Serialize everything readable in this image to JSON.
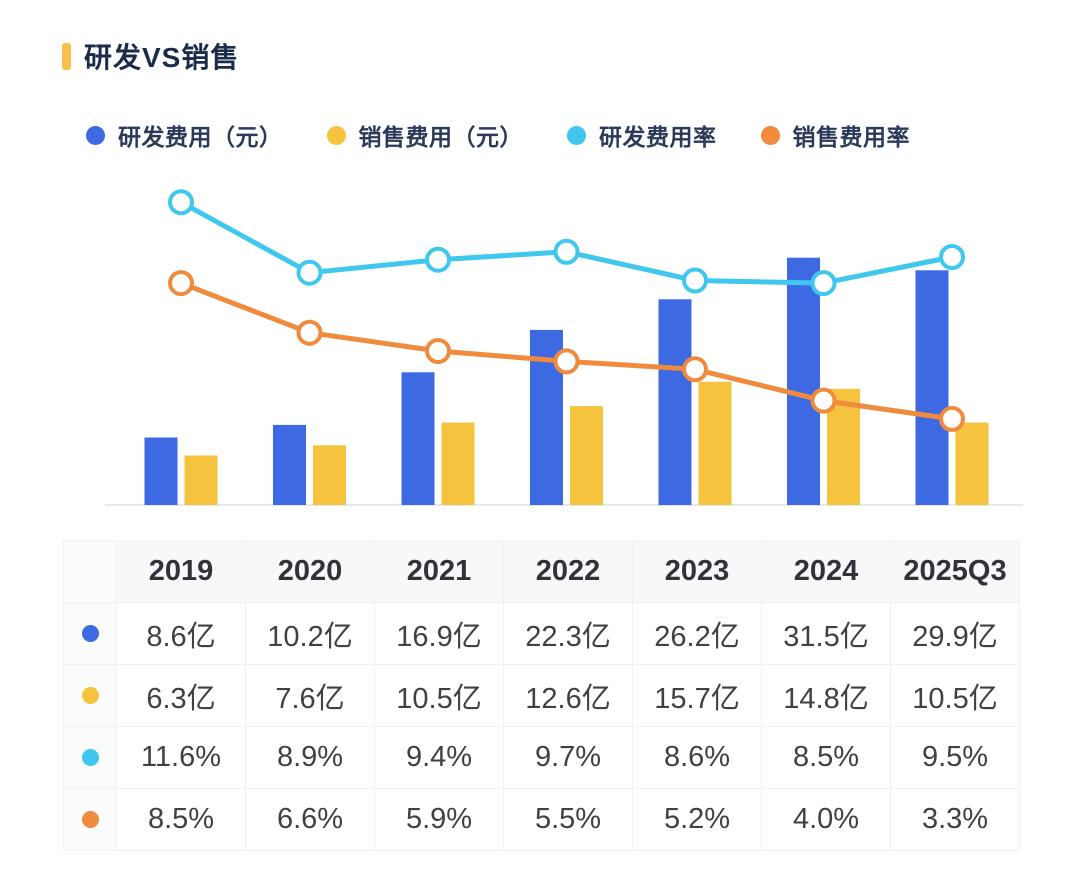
{
  "header": {
    "title": "研发VS销售",
    "accent_color": "#F7C04A"
  },
  "legend": {
    "items": [
      {
        "label": "研发费用（元）",
        "color": "#3D6AE2",
        "type": "bar"
      },
      {
        "label": "销售费用（元）",
        "color": "#F5C33E",
        "type": "bar"
      },
      {
        "label": "研发费用率",
        "color": "#3FC7F0",
        "type": "line"
      },
      {
        "label": "销售费用率",
        "color": "#F08B3D",
        "type": "line"
      }
    ]
  },
  "chart_data": {
    "type": "combo-bar-line",
    "categories": [
      "2019",
      "2020",
      "2021",
      "2022",
      "2023",
      "2024",
      "2025Q3"
    ],
    "series": [
      {
        "name": "研发费用（元）",
        "type": "bar",
        "unit": "亿",
        "color": "#3D6AE2",
        "values": [
          8.6,
          10.2,
          16.9,
          22.3,
          26.2,
          31.5,
          29.9
        ]
      },
      {
        "name": "销售费用（元）",
        "type": "bar",
        "unit": "亿",
        "color": "#F5C33E",
        "values": [
          6.3,
          7.6,
          10.5,
          12.6,
          15.7,
          14.8,
          10.5
        ]
      },
      {
        "name": "研发费用率",
        "type": "line",
        "unit": "%",
        "color": "#3FC7F0",
        "values": [
          11.6,
          8.9,
          9.4,
          9.7,
          8.6,
          8.5,
          9.5
        ]
      },
      {
        "name": "销售费用率",
        "type": "line",
        "unit": "%",
        "color": "#F08B3D",
        "values": [
          8.5,
          6.6,
          5.9,
          5.5,
          5.2,
          4.0,
          3.3
        ]
      }
    ],
    "title": "研发VS销售",
    "xlabel": "",
    "ylabel": "",
    "left_axis_implied_range_yi": [
      0,
      42.5
    ],
    "right_axis_implied_range_pct": [
      0,
      12.8
    ],
    "grid": false,
    "axis_tick_labels_visible": false,
    "legend_position": "top",
    "marker_style": "open-circle"
  },
  "table": {
    "header": [
      "",
      "2019",
      "2020",
      "2021",
      "2022",
      "2023",
      "2024",
      "2025Q3"
    ],
    "rows": [
      {
        "series": "研发费用（元）",
        "dot_color": "#3D6AE2",
        "cells": [
          "8.6亿",
          "10.2亿",
          "16.9亿",
          "22.3亿",
          "26.2亿",
          "31.5亿",
          "29.9亿"
        ]
      },
      {
        "series": "销售费用（元）",
        "dot_color": "#F5C33E",
        "cells": [
          "6.3亿",
          "7.6亿",
          "10.5亿",
          "12.6亿",
          "15.7亿",
          "14.8亿",
          "10.5亿"
        ]
      },
      {
        "series": "研发费用率",
        "dot_color": "#3FC7F0",
        "cells": [
          "11.6%",
          "8.9%",
          "9.4%",
          "9.7%",
          "8.6%",
          "8.5%",
          "9.5%"
        ]
      },
      {
        "series": "销售费用率",
        "dot_color": "#F08B3D",
        "cells": [
          "8.5%",
          "6.6%",
          "5.9%",
          "5.5%",
          "5.2%",
          "4.0%",
          "3.3%"
        ]
      }
    ]
  }
}
